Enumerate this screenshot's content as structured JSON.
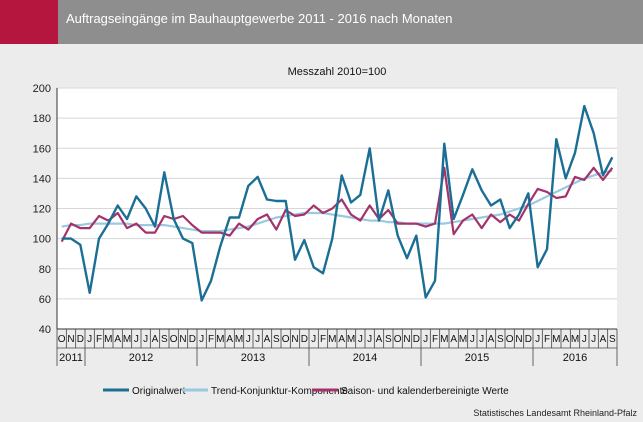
{
  "header": {
    "title": "Auftragseingänge im Bauhauptgewerbe 2011 - 2016 nach Monaten"
  },
  "footer": {
    "source": "Statistisches Landesamt Rheinland-Pfalz"
  },
  "chart_data": {
    "type": "line",
    "title": "",
    "subtitle": "Messzahl 2010=100",
    "xlabel": "",
    "ylabel": "",
    "ylim": [
      40,
      200
    ],
    "yticks": [
      40,
      60,
      80,
      100,
      120,
      140,
      160,
      180,
      200
    ],
    "grid": true,
    "legend_position": "bottom",
    "x": [
      "2011-10",
      "2011-11",
      "2011-12",
      "2012-01",
      "2012-02",
      "2012-03",
      "2012-04",
      "2012-05",
      "2012-06",
      "2012-07",
      "2012-08",
      "2012-09",
      "2012-10",
      "2012-11",
      "2012-12",
      "2013-01",
      "2013-02",
      "2013-03",
      "2013-04",
      "2013-05",
      "2013-06",
      "2013-07",
      "2013-08",
      "2013-09",
      "2013-10",
      "2013-11",
      "2013-12",
      "2014-01",
      "2014-02",
      "2014-03",
      "2014-04",
      "2014-05",
      "2014-06",
      "2014-07",
      "2014-08",
      "2014-09",
      "2014-10",
      "2014-11",
      "2014-12",
      "2015-01",
      "2015-02",
      "2015-03",
      "2015-04",
      "2015-05",
      "2015-06",
      "2015-07",
      "2015-08",
      "2015-09",
      "2015-10",
      "2015-11",
      "2015-12",
      "2016-01",
      "2016-02",
      "2016-03",
      "2016-04",
      "2016-05",
      "2016-06",
      "2016-07",
      "2016-08",
      "2016-09"
    ],
    "month_labels": [
      "O",
      "N",
      "D",
      "J",
      "F",
      "M",
      "A",
      "M",
      "J",
      "J",
      "A",
      "S",
      "O",
      "N",
      "D",
      "J",
      "F",
      "M",
      "A",
      "M",
      "J",
      "J",
      "A",
      "S",
      "O",
      "N",
      "D",
      "J",
      "F",
      "M",
      "A",
      "M",
      "J",
      "J",
      "A",
      "S",
      "O",
      "N",
      "D",
      "J",
      "F",
      "M",
      "A",
      "M",
      "J",
      "J",
      "A",
      "S",
      "O",
      "N",
      "D",
      "J",
      "F",
      "M",
      "A",
      "M",
      "J",
      "J",
      "A",
      "S"
    ],
    "years": [
      {
        "label": "2011",
        "start": 0,
        "end": 2
      },
      {
        "label": "2012",
        "start": 3,
        "end": 14
      },
      {
        "label": "2013",
        "start": 15,
        "end": 26
      },
      {
        "label": "2014",
        "start": 27,
        "end": 38
      },
      {
        "label": "2015",
        "start": 39,
        "end": 50
      },
      {
        "label": "2016",
        "start": 51,
        "end": 59
      }
    ],
    "series": [
      {
        "name": "Originalwert",
        "color": "#1b6f95",
        "width": 2.4,
        "values": [
          100,
          100,
          96,
          64,
          100,
          110,
          122,
          113,
          128,
          120,
          108,
          144,
          113,
          100,
          97,
          59,
          72,
          95,
          114,
          114,
          135,
          141,
          126,
          125,
          125,
          86,
          99,
          81,
          77,
          100,
          142,
          124,
          129,
          160,
          112,
          132,
          102,
          87,
          102,
          61,
          72,
          163,
          113,
          129,
          146,
          132,
          122,
          126,
          107,
          116,
          130,
          81,
          93,
          166,
          140,
          157,
          188,
          170,
          142,
          154
        ]
      },
      {
        "name": "Trend-Konjunktur-Komponente",
        "color": "#9ac9e0",
        "width": 2.2,
        "values": [
          108,
          109,
          109,
          110,
          110,
          110,
          110,
          110,
          109,
          109,
          109,
          109,
          108,
          107,
          106,
          105,
          105,
          105,
          106,
          107,
          108,
          110,
          112,
          114,
          115,
          116,
          117,
          117,
          117,
          116,
          115,
          114,
          113,
          112,
          112,
          111,
          111,
          110,
          110,
          110,
          110,
          110,
          111,
          112,
          113,
          114,
          115,
          116,
          118,
          120,
          122,
          125,
          128,
          131,
          134,
          137,
          140,
          142,
          144,
          145
        ]
      },
      {
        "name": "Saison- und kalenderbereinigte Werte",
        "color": "#a3336a",
        "width": 2.2,
        "values": [
          98,
          110,
          107,
          107,
          115,
          112,
          117,
          107,
          110,
          104,
          104,
          115,
          113,
          115,
          109,
          104,
          104,
          104,
          102,
          110,
          106,
          113,
          116,
          106,
          119,
          115,
          116,
          122,
          117,
          120,
          126,
          116,
          112,
          122,
          113,
          119,
          110,
          110,
          110,
          108,
          110,
          147,
          103,
          112,
          116,
          107,
          116,
          111,
          116,
          112,
          123,
          133,
          131,
          127,
          128,
          141,
          139,
          147,
          139,
          147
        ]
      }
    ]
  }
}
